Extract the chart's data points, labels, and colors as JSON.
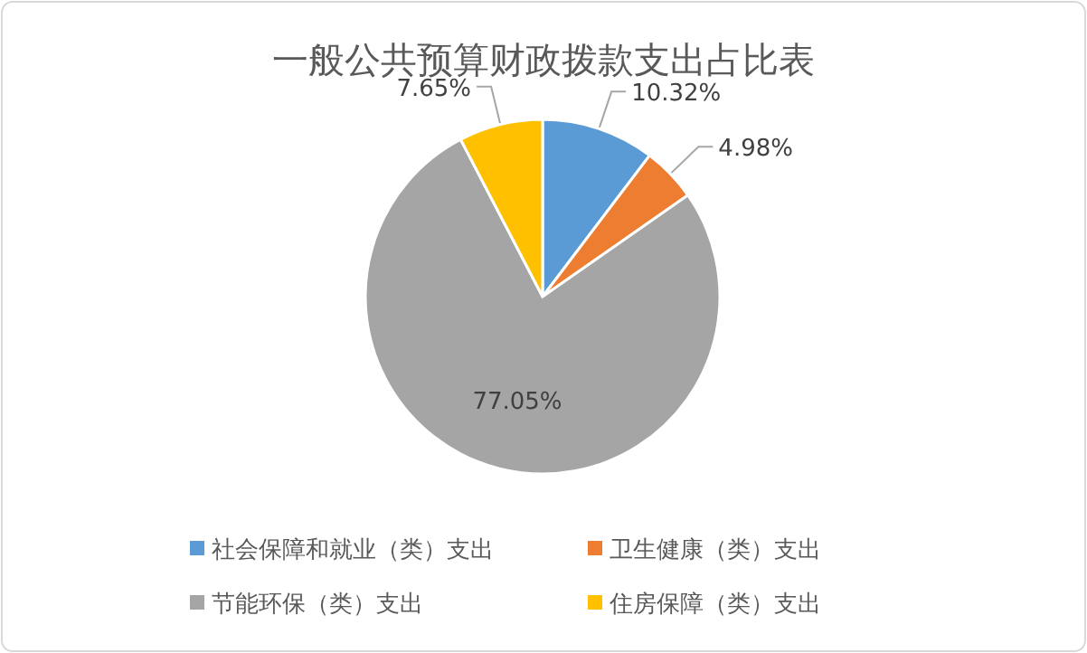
{
  "chart_data": {
    "type": "pie",
    "title": "一般公共预算财政拨款支出占比表",
    "categories": [
      "社会保障和就业（类）支出",
      "卫生健康（类）支出",
      "节能环保（类）支出",
      "住房保障（类）支出"
    ],
    "values": [
      10.32,
      4.98,
      77.05,
      7.65
    ],
    "colors": [
      "#5b9bd5",
      "#ed7d31",
      "#a5a5a5",
      "#ffc000"
    ],
    "value_labels": [
      "10.32%",
      "4.98%",
      "77.05%",
      "7.65%"
    ],
    "legend": "bottom"
  }
}
